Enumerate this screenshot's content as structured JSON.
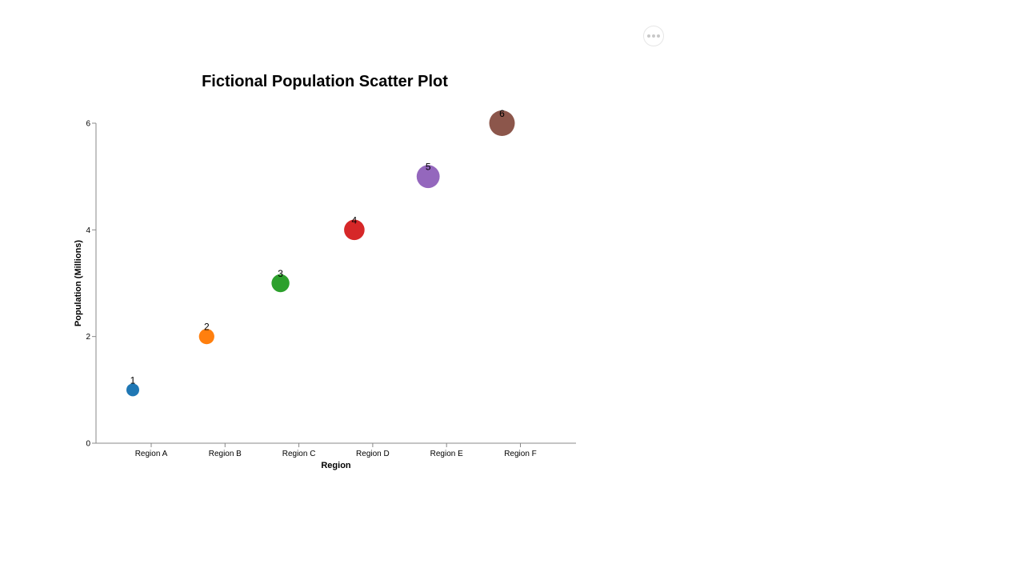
{
  "menu": {
    "icon": "more-horizontal-icon"
  },
  "chart_data": {
    "type": "scatter",
    "title": "Fictional Population Scatter Plot",
    "xlabel": "Region",
    "ylabel": "Population (Millions)",
    "categories": [
      "Region A",
      "Region B",
      "Region C",
      "Region D",
      "Region E",
      "Region F"
    ],
    "values": [
      1,
      2,
      3,
      4,
      5,
      6
    ],
    "data_labels": [
      "1",
      "2",
      "3",
      "4",
      "5",
      "6"
    ],
    "colors": [
      "#1f77b4",
      "#ff7f0e",
      "#2ca02c",
      "#d62728",
      "#9467bd",
      "#8c564b"
    ],
    "size_encodes": "value",
    "ylim": [
      0,
      6
    ],
    "y_ticks": [
      0,
      2,
      4,
      6
    ],
    "y_tick_labels": [
      "0",
      "2",
      "4",
      "6"
    ],
    "grid": false,
    "legend": "none"
  }
}
